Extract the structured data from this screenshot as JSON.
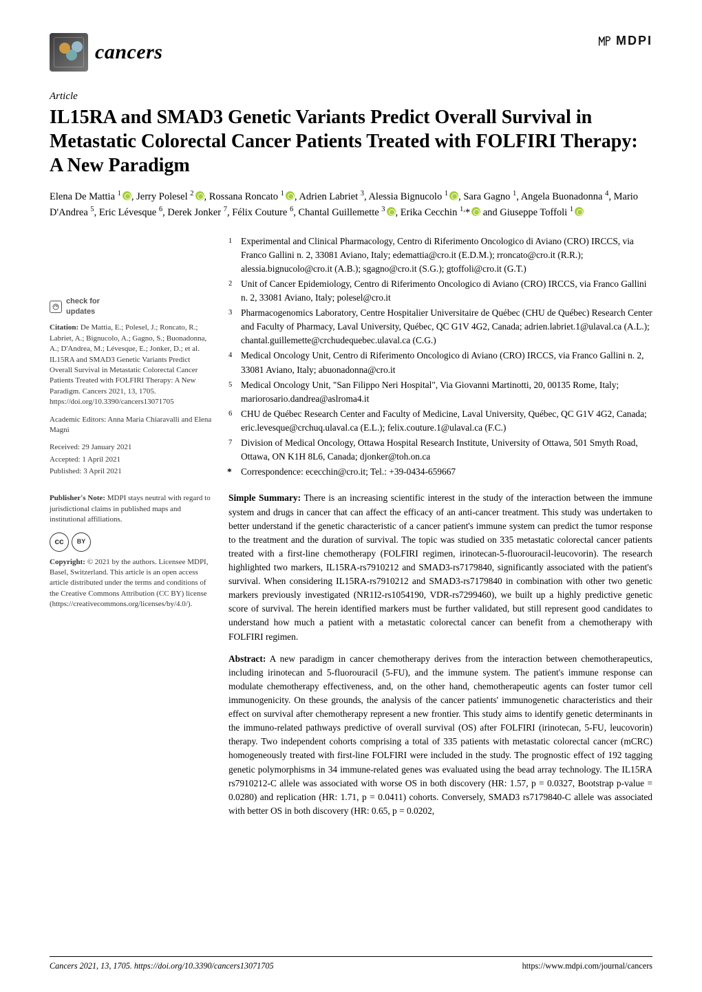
{
  "journal": {
    "name": "cancers"
  },
  "publisher_mark": "MDPI",
  "article_type": "Article",
  "title": "IL15RA and SMAD3 Genetic Variants Predict Overall Survival in Metastatic Colorectal Cancer Patients Treated with FOLFIRI Therapy: A New Paradigm",
  "authors_html": "Elena De Mattia <sup>1</sup>⬤, Jerry Polesel <sup>2</sup>⬤, Rossana Roncato <sup>1</sup>⬤, Adrien Labriet <sup>3</sup>, Alessia Bignucolo <sup>1</sup>⬤, Sara Gagno <sup>1</sup>, Angela Buonadonna <sup>4</sup>, Mario D'Andrea <sup>5</sup>, Eric Lévesque <sup>6</sup>, Derek Jonker <sup>7</sup>, Félix Couture <sup>6</sup>, Chantal Guillemette <sup>3</sup>⬤, Erika Cecchin <sup>1,</sup>*⬤ and Giuseppe Toffoli <sup>1</sup>⬤",
  "affiliations": [
    {
      "n": "1",
      "text": "Experimental and Clinical Pharmacology, Centro di Riferimento Oncologico di Aviano (CRO) IRCCS, via Franco Gallini n. 2, 33081 Aviano, Italy; edemattia@cro.it (E.D.M.); rroncato@cro.it (R.R.); alessia.bignucolo@cro.it (A.B.); sgagno@cro.it (S.G.); gtoffoli@cro.it (G.T.)"
    },
    {
      "n": "2",
      "text": "Unit of Cancer Epidemiology, Centro di Riferimento Oncologico di Aviano (CRO) IRCCS, via Franco Gallini n. 2, 33081 Aviano, Italy; polesel@cro.it"
    },
    {
      "n": "3",
      "text": "Pharmacogenomics Laboratory, Centre Hospitalier Universitaire de Québec (CHU de Québec) Research Center and Faculty of Pharmacy, Laval University, Québec, QC G1V 4G2, Canada; adrien.labriet.1@ulaval.ca (A.L.); chantal.guillemette@crchudequebec.ulaval.ca (C.G.)"
    },
    {
      "n": "4",
      "text": "Medical Oncology Unit, Centro di Riferimento Oncologico di Aviano (CRO) IRCCS, via Franco Gallini n. 2, 33081 Aviano, Italy; abuonadonna@cro.it"
    },
    {
      "n": "5",
      "text": "Medical Oncology Unit, \"San Filippo Neri Hospital\", Via Giovanni Martinotti, 20, 00135 Rome, Italy; mariorosario.dandrea@aslroma4.it"
    },
    {
      "n": "6",
      "text": "CHU de Québec Research Center and Faculty of Medicine, Laval University, Québec, QC G1V 4G2, Canada; eric.levesque@crchuq.ulaval.ca (E.L.); felix.couture.1@ulaval.ca (F.C.)"
    },
    {
      "n": "7",
      "text": "Division of Medical Oncology, Ottawa Hospital Research Institute, University of Ottawa, 501 Smyth Road, Ottawa, ON K1H 8L6, Canada; djonker@toh.on.ca"
    }
  ],
  "correspondence": "Correspondence: ececchin@cro.it; Tel.: +39-0434-659667",
  "left": {
    "check_label": "check for",
    "check_label2": "updates",
    "citation": "Citation: De Mattia, E.; Polesel, J.; Roncato, R.; Labriet, A.; Bignucolo, A.; Gagno, S.; Buonadonna, A.; D'Andrea, M.; Lévesque, E.; Jonker, D.; et al. IL15RA and SMAD3 Genetic Variants Predict Overall Survival in Metastatic Colorectal Cancer Patients Treated with FOLFIRI Therapy: A New Paradigm. Cancers 2021, 13, 1705. https://doi.org/10.3390/cancers13071705",
    "editors": "Academic Editors: Anna Maria Chiaravalli and Elena Magni",
    "received": "Received: 29 January 2021",
    "accepted": "Accepted: 1 April 2021",
    "published": "Published: 3 April 2021",
    "pubnote": "Publisher's Note: MDPI stays neutral with regard to jurisdictional claims in published maps and institutional affiliations.",
    "copyright": "Copyright: © 2021 by the authors. Licensee MDPI, Basel, Switzerland. This article is an open access article distributed under the terms and conditions of the Creative Commons Attribution (CC BY) license (https://creativecommons.org/licenses/by/4.0/)."
  },
  "simple_summary_label": "Simple Summary:",
  "simple_summary": "There is an increasing scientific interest in the study of the interaction between the immune system and drugs in cancer that can affect the efficacy of an anti-cancer treatment. This study was undertaken to better understand if the genetic characteristic of a cancer patient's immune system can predict the tumor response to the treatment and the duration of survival. The topic was studied on 335 metastatic colorectal cancer patients treated with a first-line chemotherapy (FOLFIRI regimen, irinotecan-5-fluorouracil-leucovorin). The research highlighted two markers, IL15RA-rs7910212 and SMAD3-rs7179840, significantly associated with the patient's survival. When considering IL15RA-rs7910212 and SMAD3-rs7179840 in combination with other two genetic markers previously investigated (NR1I2-rs1054190, VDR-rs7299460), we built up a highly predictive genetic score of survival. The herein identified markers must be further validated, but still represent good candidates to understand how much a patient with a metastatic colorectal cancer can benefit from a chemotherapy with FOLFIRI regimen.",
  "abstract_label": "Abstract:",
  "abstract": "A new paradigm in cancer chemotherapy derives from the interaction between chemotherapeutics, including irinotecan and 5-fluorouracil (5-FU), and the immune system. The patient's immune response can modulate chemotherapy effectiveness, and, on the other hand, chemotherapeutic agents can foster tumor cell immunogenicity. On these grounds, the analysis of the cancer patients' immunogenetic characteristics and their effect on survival after chemotherapy represent a new frontier. This study aims to identify genetic determinants in the immuno-related pathways predictive of overall survival (OS) after FOLFIRI (irinotecan, 5-FU, leucovorin) therapy. Two independent cohorts comprising a total of 335 patients with metastatic colorectal cancer (mCRC) homogeneously treated with first-line FOLFIRI were included in the study. The prognostic effect of 192 tagging genetic polymorphisms in 34 immune-related genes was evaluated using the bead array technology. The IL15RA rs7910212-C allele was associated with worse OS in both discovery (HR: 1.57, p = 0.0327, Bootstrap p-value = 0.0280) and replication (HR: 1.71, p = 0.0411) cohorts. Conversely, SMAD3 rs7179840-C allele was associated with better OS in both discovery (HR: 0.65, p = 0.0202,",
  "footer": {
    "left": "Cancers 2021, 13, 1705. https://doi.org/10.3390/cancers13071705",
    "right": "https://www.mdpi.com/journal/cancers"
  }
}
